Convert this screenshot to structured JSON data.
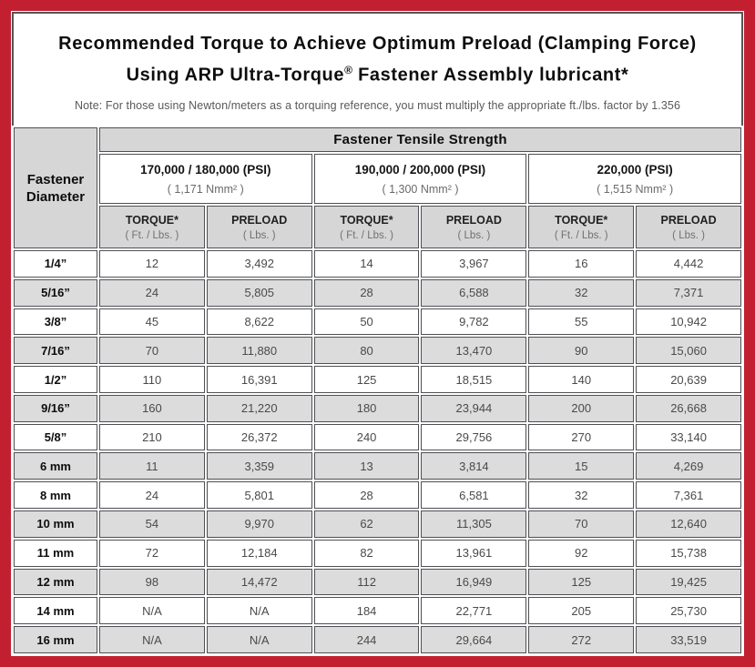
{
  "page": {
    "title_line1": "Recommended Torque to Achieve Optimum Preload (Clamping Force)",
    "title_line2_pre": "Using ARP Ultra-Torque",
    "title_line2_reg": "®",
    "title_line2_post": " Fastener Assembly lubricant*",
    "note": "Note: For those using Newton/meters as a torquing reference, you must multiply the appropriate ft./lbs. factor by 1.356"
  },
  "colors": {
    "frame_red": "#c22030",
    "grid_dark": "#4f5054",
    "header_gray": "#d6d6d7",
    "row_gray": "#dcdcdd"
  },
  "table": {
    "corner_line1": "Fastener",
    "corner_line2": "Diameter",
    "tensile_header": "Fastener Tensile Strength",
    "strength_groups": [
      {
        "psi": "170,000 / 180,000 (PSI)",
        "nmm": "( 1,171 Nmm² )"
      },
      {
        "psi": "190,000 / 200,000 (PSI)",
        "nmm": "( 1,300 Nmm² )"
      },
      {
        "psi": "220,000 (PSI)",
        "nmm": "( 1,515 Nmm² )"
      }
    ],
    "torque_label": "TORQUE*",
    "torque_unit": "( Ft. / Lbs. )",
    "preload_label": "PRELOAD",
    "preload_unit": "( Lbs. )",
    "rows": [
      {
        "diameter": "1/4”",
        "values": [
          "12",
          "3,492",
          "14",
          "3,967",
          "16",
          "4,442"
        ]
      },
      {
        "diameter": "5/16”",
        "values": [
          "24",
          "5,805",
          "28",
          "6,588",
          "32",
          "7,371"
        ]
      },
      {
        "diameter": "3/8”",
        "values": [
          "45",
          "8,622",
          "50",
          "9,782",
          "55",
          "10,942"
        ]
      },
      {
        "diameter": "7/16”",
        "values": [
          "70",
          "11,880",
          "80",
          "13,470",
          "90",
          "15,060"
        ]
      },
      {
        "diameter": "1/2”",
        "values": [
          "110",
          "16,391",
          "125",
          "18,515",
          "140",
          "20,639"
        ]
      },
      {
        "diameter": "9/16”",
        "values": [
          "160",
          "21,220",
          "180",
          "23,944",
          "200",
          "26,668"
        ]
      },
      {
        "diameter": "5/8”",
        "values": [
          "210",
          "26,372",
          "240",
          "29,756",
          "270",
          "33,140"
        ]
      },
      {
        "diameter": "6 mm",
        "values": [
          "11",
          "3,359",
          "13",
          "3,814",
          "15",
          "4,269"
        ]
      },
      {
        "diameter": "8 mm",
        "values": [
          "24",
          "5,801",
          "28",
          "6,581",
          "32",
          "7,361"
        ]
      },
      {
        "diameter": "10 mm",
        "values": [
          "54",
          "9,970",
          "62",
          "11,305",
          "70",
          "12,640"
        ]
      },
      {
        "diameter": "11 mm",
        "values": [
          "72",
          "12,184",
          "82",
          "13,961",
          "92",
          "15,738"
        ]
      },
      {
        "diameter": "12 mm",
        "values": [
          "98",
          "14,472",
          "112",
          "16,949",
          "125",
          "19,425"
        ]
      },
      {
        "diameter": "14 mm",
        "values": [
          "N/A",
          "N/A",
          "184",
          "22,771",
          "205",
          "25,730"
        ]
      },
      {
        "diameter": "16 mm",
        "values": [
          "N/A",
          "N/A",
          "244",
          "29,664",
          "272",
          "33,519"
        ]
      }
    ]
  }
}
